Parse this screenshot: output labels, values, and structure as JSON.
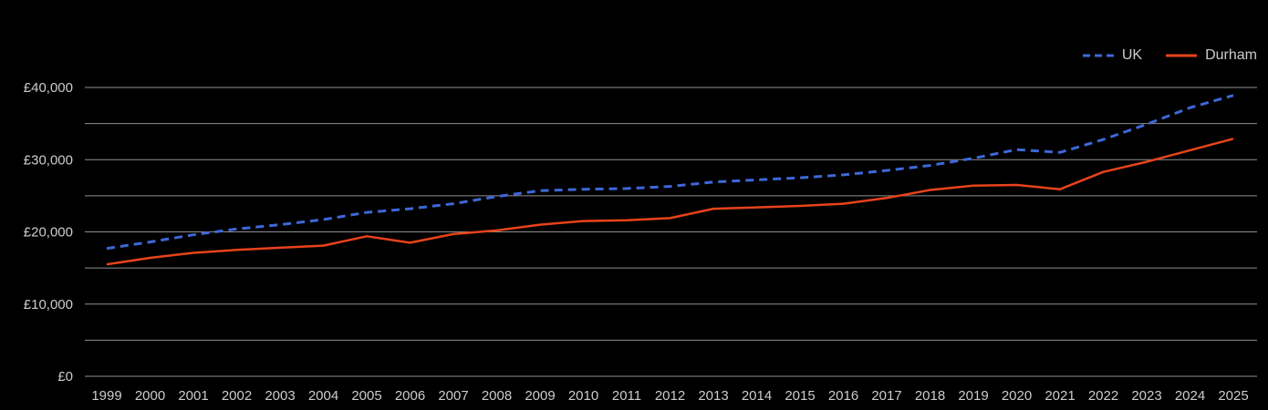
{
  "chart": {
    "background_color": "#000000",
    "text_color": "#cccccc",
    "grid_color": "#8f8f8f",
    "legend": {
      "position": "top-right",
      "items": [
        {
          "label": "UK"
        },
        {
          "label": "Durham"
        }
      ]
    }
  },
  "chart_data": {
    "type": "line",
    "title": "",
    "xlabel": "",
    "ylabel": "",
    "grid": true,
    "gridline_step": 5000,
    "ylim": [
      0,
      40000
    ],
    "y_tick_step": 10000,
    "y_tick_labels": [
      "£0",
      "£10,000",
      "£20,000",
      "£30,000",
      "£40,000"
    ],
    "x": [
      "1999",
      "2000",
      "2001",
      "2002",
      "2003",
      "2004",
      "2005",
      "2006",
      "2007",
      "2008",
      "2009",
      "2010",
      "2011",
      "2012",
      "2013",
      "2014",
      "2015",
      "2016",
      "2017",
      "2018",
      "2019",
      "2020",
      "2021",
      "2022",
      "2023",
      "2024",
      "2025"
    ],
    "series": [
      {
        "name": "UK",
        "color": "#3E68D8",
        "style": "dashed",
        "values": [
          17700,
          18600,
          19600,
          20400,
          21000,
          21700,
          22700,
          23200,
          23900,
          24900,
          25700,
          25900,
          26000,
          26300,
          26900,
          27200,
          27500,
          27900,
          28500,
          29200,
          30200,
          31400,
          31000,
          32800,
          34900,
          37200,
          38900
        ]
      },
      {
        "name": "Durham",
        "color": "#E8431A",
        "style": "solid",
        "values": [
          15500,
          16400,
          17100,
          17500,
          17800,
          18100,
          19400,
          18500,
          19700,
          20200,
          21000,
          21500,
          21600,
          21900,
          23200,
          23400,
          23600,
          23900,
          24700,
          25800,
          26400,
          26500,
          25900,
          28300,
          29700,
          31300,
          32900
        ]
      }
    ]
  }
}
